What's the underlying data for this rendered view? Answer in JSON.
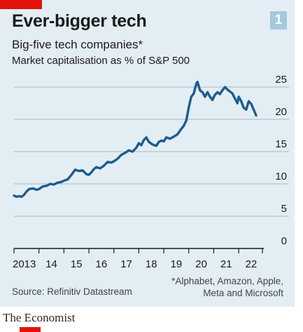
{
  "header": {
    "chart_number": "1",
    "title": "Ever-bigger tech",
    "subtitle": "Big-five tech companies*",
    "unit": "Market capitalisation as % of S&P 500"
  },
  "footer": {
    "source": "Source: Refinitiv Datastream",
    "footnote_line1": "*Alphabet, Amazon, Apple,",
    "footnote_line2": "Meta and Microsoft",
    "brand": "The Economist"
  },
  "colors": {
    "accent": "#e3120b",
    "line": "#1d5c8f",
    "background": "#e3eef4",
    "badge": "#a7c8dc"
  },
  "chart_data": {
    "type": "line",
    "title": "Ever-bigger tech",
    "subtitle": "Big-five tech companies*",
    "ylabel": "Market capitalisation as % of S&P 500",
    "xlim": [
      2013.0,
      2022.95
    ],
    "ylim": [
      0,
      25
    ],
    "x_ticks": [
      2013,
      2014,
      2015,
      2016,
      2017,
      2018,
      2019,
      2020,
      2021,
      2022
    ],
    "x_tick_labels": [
      "2013",
      "14",
      "15",
      "16",
      "17",
      "18",
      "19",
      "20",
      "21",
      "22"
    ],
    "y_ticks": [
      0,
      5,
      10,
      15,
      20,
      25
    ],
    "y_tick_labels": [
      "0",
      "5",
      "10",
      "15",
      "20",
      "25"
    ],
    "grid": "horizontal",
    "series": [
      {
        "name": "Big-five tech companies",
        "x": [
          2013.0,
          2013.1,
          2013.2,
          2013.3,
          2013.4,
          2013.5,
          2013.6,
          2013.75,
          2013.9,
          2014.0,
          2014.15,
          2014.3,
          2014.45,
          2014.6,
          2014.75,
          2014.9,
          2015.0,
          2015.15,
          2015.3,
          2015.45,
          2015.6,
          2015.75,
          2015.9,
          2016.0,
          2016.1,
          2016.2,
          2016.3,
          2016.45,
          2016.6,
          2016.75,
          2016.9,
          2017.0,
          2017.15,
          2017.3,
          2017.45,
          2017.6,
          2017.75,
          2017.9,
          2018.0,
          2018.1,
          2018.2,
          2018.3,
          2018.4,
          2018.55,
          2018.7,
          2018.8,
          2018.9,
          2019.0,
          2019.1,
          2019.25,
          2019.4,
          2019.55,
          2019.7,
          2019.8,
          2019.9,
          2020.0,
          2020.1,
          2020.2,
          2020.3,
          2020.35,
          2020.45,
          2020.55,
          2020.65,
          2020.75,
          2020.85,
          2020.95,
          2021.05,
          2021.15,
          2021.25,
          2021.35,
          2021.45,
          2021.55,
          2021.65,
          2021.75,
          2021.85,
          2021.95,
          2022.0,
          2022.1,
          2022.2,
          2022.3,
          2022.4,
          2022.5,
          2022.6,
          2022.7
        ],
        "values": [
          8.2,
          8.0,
          8.1,
          8.0,
          8.3,
          8.8,
          9.2,
          9.3,
          9.1,
          9.2,
          9.6,
          9.7,
          10.0,
          9.9,
          10.2,
          10.3,
          10.5,
          10.7,
          11.4,
          12.2,
          12.0,
          12.1,
          11.5,
          11.4,
          11.8,
          12.3,
          12.6,
          12.4,
          12.8,
          13.4,
          13.3,
          13.5,
          13.9,
          14.5,
          14.8,
          15.2,
          15.0,
          15.6,
          16.3,
          16.0,
          16.8,
          17.2,
          16.5,
          16.1,
          15.9,
          16.5,
          16.7,
          16.6,
          17.2,
          17.0,
          17.3,
          17.7,
          18.5,
          19.0,
          19.8,
          21.8,
          23.5,
          24.0,
          25.5,
          25.8,
          24.5,
          24.2,
          23.5,
          24.2,
          23.5,
          23.0,
          23.8,
          24.2,
          23.9,
          24.5,
          25.0,
          24.6,
          24.3,
          24.0,
          23.2,
          22.5,
          23.5,
          22.8,
          21.8,
          21.5,
          22.8,
          22.4,
          21.5,
          20.6
        ]
      }
    ]
  }
}
